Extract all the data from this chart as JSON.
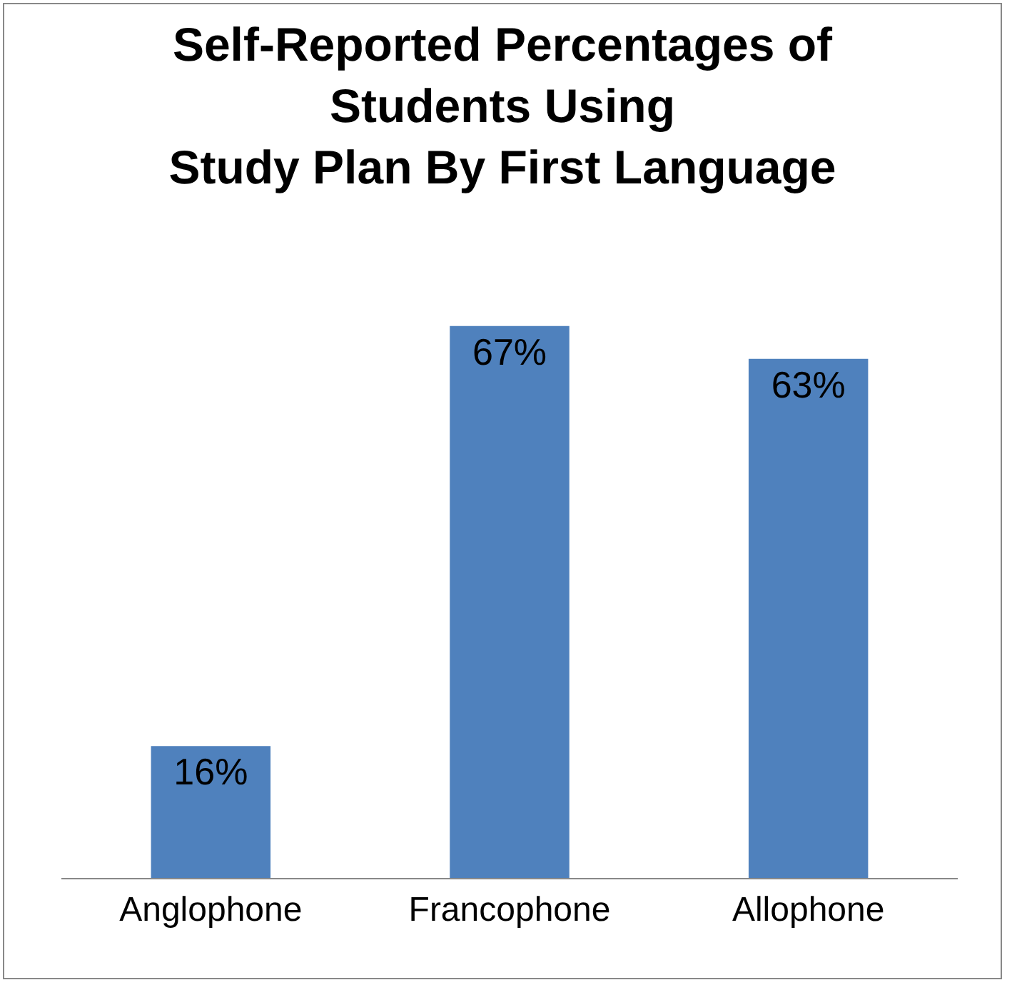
{
  "chart_data": {
    "type": "bar",
    "title": "Self-Reported Percentages of\nStudents Using\nStudy Plan By First Language",
    "categories": [
      "Anglophone",
      "Francophone",
      "Allophone"
    ],
    "values": [
      16,
      67,
      63
    ],
    "value_labels": [
      "16%",
      "67%",
      "63%"
    ],
    "color": "#4f81bd"
  }
}
